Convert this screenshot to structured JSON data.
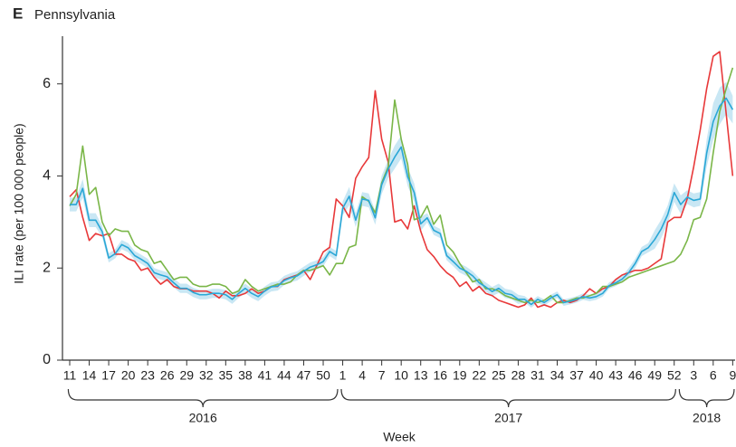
{
  "chart_data": {
    "type": "line",
    "panel": "E",
    "title": "Pennsylvania",
    "x_label": "Week",
    "y_label": "ILI rate (per 100 000 people)",
    "categories": [
      "11",
      null,
      null,
      "14",
      null,
      null,
      "17",
      null,
      null,
      "20",
      null,
      null,
      "23",
      null,
      null,
      "26",
      null,
      null,
      "29",
      null,
      null,
      "32",
      null,
      null,
      "35",
      null,
      null,
      "38",
      null,
      null,
      "41",
      null,
      null,
      "44",
      null,
      null,
      "47",
      null,
      null,
      "50",
      null,
      null,
      "1",
      null,
      null,
      "4",
      null,
      null,
      "7",
      null,
      null,
      "10",
      null,
      null,
      "13",
      null,
      null,
      "16",
      null,
      null,
      "19",
      null,
      null,
      "22",
      null,
      null,
      "25",
      null,
      null,
      "28",
      null,
      null,
      "31",
      null,
      null,
      "34",
      null,
      null,
      "37",
      null,
      null,
      "40",
      null,
      null,
      "43",
      null,
      null,
      "46",
      null,
      null,
      "49",
      null,
      null,
      "52",
      null,
      null,
      "3",
      null,
      null,
      "6",
      null,
      null,
      "9"
    ],
    "x_groups": [
      {
        "label": "2016",
        "n": 42
      },
      {
        "label": "2017",
        "n": 52
      },
      {
        "label": "2018",
        "n": 9
      }
    ],
    "ylim": [
      0,
      6.8
    ],
    "yticks": [
      0,
      2,
      4,
      6
    ],
    "series": [
      {
        "color": "#e8393a",
        "values": [
          3.55,
          3.7,
          3.1,
          2.6,
          2.75,
          2.7,
          2.75,
          2.3,
          2.3,
          2.2,
          2.15,
          1.95,
          2.0,
          1.8,
          1.65,
          1.75,
          1.6,
          1.55,
          1.55,
          1.5,
          1.5,
          1.5,
          1.45,
          1.35,
          1.5,
          1.4,
          1.4,
          1.45,
          1.55,
          1.45,
          1.5,
          1.6,
          1.6,
          1.75,
          1.8,
          1.85,
          1.95,
          1.75,
          2.05,
          2.35,
          2.45,
          3.5,
          3.35,
          3.1,
          3.95,
          4.2,
          4.4,
          5.85,
          4.8,
          4.3,
          3.0,
          3.05,
          2.85,
          3.35,
          2.8,
          2.4,
          2.25,
          2.05,
          1.9,
          1.8,
          1.6,
          1.7,
          1.5,
          1.6,
          1.45,
          1.4,
          1.3,
          1.25,
          1.2,
          1.15,
          1.2,
          1.35,
          1.15,
          1.2,
          1.15,
          1.25,
          1.3,
          1.25,
          1.3,
          1.4,
          1.55,
          1.45,
          1.55,
          1.6,
          1.75,
          1.85,
          1.9,
          1.95,
          1.95,
          2.0,
          2.1,
          2.2,
          3.0,
          3.1,
          3.1,
          3.5,
          4.2,
          5.0,
          5.9,
          6.6,
          6.7,
          5.35,
          4.0
        ]
      },
      {
        "color": "#7ab648",
        "values": [
          3.35,
          3.6,
          4.65,
          3.6,
          3.75,
          3.0,
          2.7,
          2.85,
          2.8,
          2.8,
          2.5,
          2.4,
          2.35,
          2.1,
          2.15,
          1.95,
          1.75,
          1.8,
          1.8,
          1.65,
          1.6,
          1.6,
          1.65,
          1.65,
          1.6,
          1.45,
          1.5,
          1.75,
          1.6,
          1.5,
          1.55,
          1.6,
          1.65,
          1.65,
          1.7,
          1.85,
          1.95,
          1.95,
          2.0,
          2.05,
          1.85,
          2.1,
          2.1,
          2.45,
          2.5,
          3.55,
          3.45,
          3.2,
          3.85,
          4.2,
          5.65,
          4.8,
          4.25,
          3.05,
          3.1,
          3.35,
          2.95,
          3.15,
          2.5,
          2.35,
          2.1,
          1.9,
          1.7,
          1.75,
          1.55,
          1.55,
          1.5,
          1.4,
          1.35,
          1.3,
          1.25,
          1.3,
          1.25,
          1.3,
          1.4,
          1.25,
          1.25,
          1.3,
          1.35,
          1.35,
          1.4,
          1.45,
          1.6,
          1.6,
          1.65,
          1.7,
          1.8,
          1.85,
          1.9,
          1.95,
          2.0,
          2.05,
          2.1,
          2.15,
          2.3,
          2.6,
          3.05,
          3.1,
          3.5,
          4.5,
          5.4,
          5.9,
          6.35
        ]
      },
      {
        "color": "#2aa7d6",
        "band_color": "#bfe3f2",
        "values": [
          3.38,
          3.38,
          3.73,
          3.04,
          3.04,
          2.79,
          2.22,
          2.31,
          2.51,
          2.44,
          2.27,
          2.19,
          2.1,
          1.9,
          1.85,
          1.81,
          1.68,
          1.56,
          1.56,
          1.47,
          1.42,
          1.42,
          1.45,
          1.45,
          1.42,
          1.32,
          1.45,
          1.56,
          1.45,
          1.38,
          1.5,
          1.59,
          1.61,
          1.73,
          1.79,
          1.83,
          1.93,
          2.02,
          2.07,
          2.14,
          2.36,
          2.27,
          3.3,
          3.56,
          3.04,
          3.5,
          3.47,
          3.09,
          3.81,
          4.15,
          4.41,
          4.63,
          3.98,
          3.64,
          2.96,
          3.09,
          2.82,
          2.75,
          2.27,
          2.14,
          2.0,
          1.93,
          1.83,
          1.68,
          1.59,
          1.49,
          1.56,
          1.45,
          1.42,
          1.32,
          1.32,
          1.21,
          1.32,
          1.25,
          1.35,
          1.42,
          1.25,
          1.28,
          1.32,
          1.38,
          1.35,
          1.38,
          1.45,
          1.62,
          1.68,
          1.76,
          1.9,
          2.1,
          2.36,
          2.44,
          2.62,
          2.85,
          3.16,
          3.64,
          3.38,
          3.54,
          3.47,
          3.5,
          4.5,
          5.18,
          5.52,
          5.69,
          5.44
        ],
        "errors": [
          0.15,
          0.15,
          0.2,
          0.15,
          0.15,
          0.12,
          0.1,
          0.1,
          0.1,
          0.1,
          0.1,
          0.1,
          0.1,
          0.1,
          0.1,
          0.1,
          0.1,
          0.1,
          0.1,
          0.1,
          0.1,
          0.1,
          0.1,
          0.1,
          0.1,
          0.1,
          0.1,
          0.1,
          0.1,
          0.1,
          0.1,
          0.1,
          0.1,
          0.1,
          0.1,
          0.1,
          0.1,
          0.1,
          0.1,
          0.1,
          0.1,
          0.1,
          0.15,
          0.2,
          0.15,
          0.15,
          0.15,
          0.15,
          0.2,
          0.2,
          0.25,
          0.25,
          0.2,
          0.2,
          0.15,
          0.1,
          0.1,
          0.1,
          0.1,
          0.1,
          0.1,
          0.1,
          0.1,
          0.1,
          0.1,
          0.1,
          0.1,
          0.1,
          0.1,
          0.1,
          0.07,
          0.07,
          0.07,
          0.07,
          0.07,
          0.07,
          0.07,
          0.07,
          0.07,
          0.07,
          0.07,
          0.07,
          0.07,
          0.07,
          0.07,
          0.07,
          0.1,
          0.1,
          0.1,
          0.1,
          0.2,
          0.2,
          0.2,
          0.2,
          0.2,
          0.15,
          0.15,
          0.15,
          0.3,
          0.4,
          0.4,
          0.35,
          0.3
        ]
      }
    ]
  }
}
